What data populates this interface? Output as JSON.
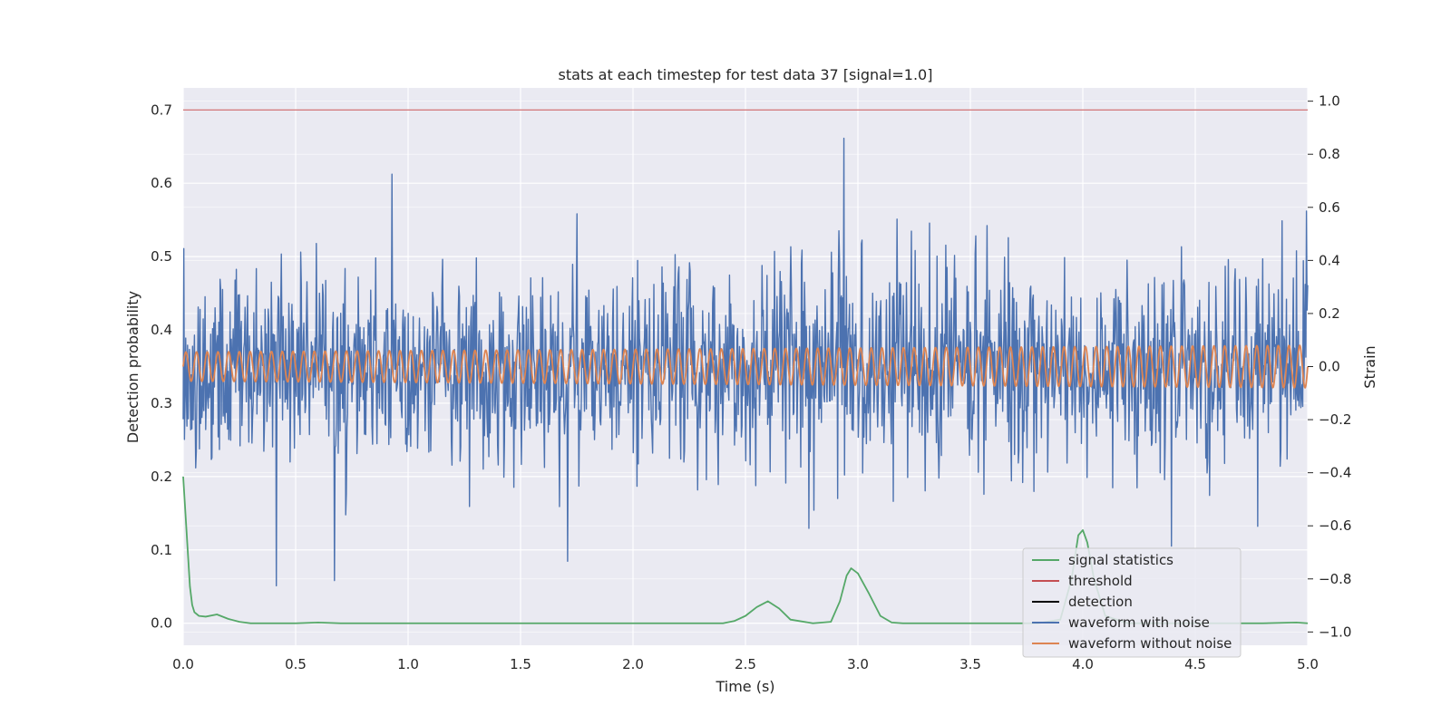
{
  "chart_data": {
    "type": "line",
    "title": "stats at each timestep for test data 37 [signal=1.0]",
    "xlabel": "Time (s)",
    "ylabel": "Detection probability",
    "y2label": "Strain",
    "xlim": [
      0.0,
      5.0
    ],
    "ylim": [
      -0.03,
      0.73
    ],
    "y2lim": [
      -1.05,
      1.05
    ],
    "xticks": [
      "0.0",
      "0.5",
      "1.0",
      "1.5",
      "2.0",
      "2.5",
      "3.0",
      "3.5",
      "4.0",
      "4.5",
      "5.0"
    ],
    "yticks": [
      "0.0",
      "0.1",
      "0.2",
      "0.3",
      "0.4",
      "0.5",
      "0.6",
      "0.7"
    ],
    "y2ticks": [
      "−1.0",
      "−0.8",
      "−0.6",
      "−0.4",
      "−0.2",
      "0.0",
      "0.2",
      "0.4",
      "0.6",
      "0.8",
      "1.0"
    ],
    "grid": true,
    "legend_position": "lower-right",
    "series": [
      {
        "name": "signal statistics",
        "axis": "left",
        "color": "#55a868",
        "x": [
          0.0,
          0.01,
          0.02,
          0.03,
          0.04,
          0.05,
          0.07,
          0.1,
          0.15,
          0.2,
          0.25,
          0.3,
          0.4,
          0.5,
          0.6,
          0.7,
          0.8,
          1.0,
          1.5,
          2.0,
          2.4,
          2.45,
          2.5,
          2.55,
          2.6,
          2.65,
          2.7,
          2.8,
          2.88,
          2.92,
          2.95,
          2.97,
          3.0,
          3.05,
          3.1,
          3.15,
          3.2,
          3.5,
          3.8,
          3.9,
          3.95,
          3.98,
          4.0,
          4.02,
          4.05,
          4.1,
          4.2,
          4.5,
          4.8,
          4.95,
          5.0
        ],
        "values": [
          0.2,
          0.15,
          0.1,
          0.05,
          0.025,
          0.015,
          0.01,
          0.009,
          0.012,
          0.006,
          0.002,
          0.0,
          0.0,
          0.0,
          0.001,
          0.0,
          0.0,
          0.0,
          0.0,
          0.0,
          0.0,
          0.003,
          0.01,
          0.022,
          0.03,
          0.02,
          0.005,
          0.0,
          0.002,
          0.03,
          0.065,
          0.075,
          0.068,
          0.04,
          0.01,
          0.001,
          0.0,
          0.0,
          0.0,
          0.005,
          0.06,
          0.12,
          0.127,
          0.11,
          0.06,
          0.01,
          0.0,
          0.0,
          0.0,
          0.001,
          0.0
        ]
      },
      {
        "name": "threshold",
        "axis": "left",
        "color": "#c44e52",
        "x": [
          0.0,
          5.0
        ],
        "values": [
          0.7,
          0.7
        ]
      },
      {
        "name": "detection",
        "axis": "left",
        "color": "#000000",
        "x": [],
        "values": []
      },
      {
        "name": "waveform with noise",
        "axis": "right",
        "color": "#4c72b0",
        "generated": {
          "type": "noise",
          "samples": 1800,
          "std": 0.18,
          "range": [
            -0.85,
            1.0
          ],
          "seed": 37
        }
      },
      {
        "name": "waveform without noise",
        "axis": "right",
        "color": "#dd8452",
        "generated": {
          "type": "sine",
          "cycles": 105,
          "amplitude_start": 0.055,
          "amplitude_end": 0.08
        }
      }
    ]
  }
}
